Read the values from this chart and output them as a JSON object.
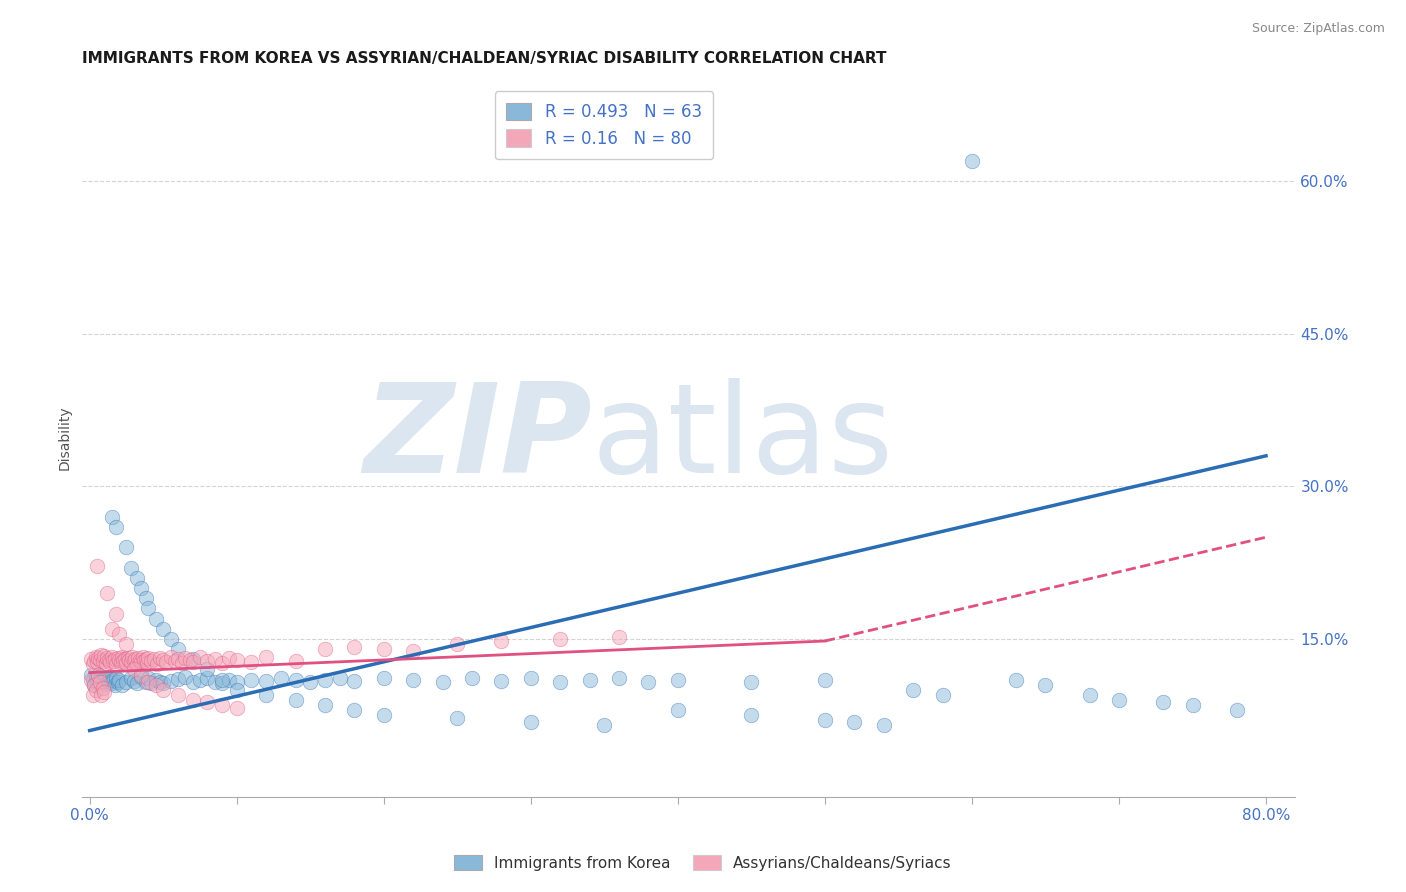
{
  "title": "IMMIGRANTS FROM KOREA VS ASSYRIAN/CHALDEAN/SYRIAC DISABILITY CORRELATION CHART",
  "source": "Source: ZipAtlas.com",
  "ylabel": "Disability",
  "xlim": [
    -0.005,
    0.82
  ],
  "ylim": [
    -0.005,
    0.7
  ],
  "xtick_values": [
    0.0,
    0.1,
    0.2,
    0.3,
    0.4,
    0.5,
    0.6,
    0.7,
    0.8
  ],
  "xticklabels_sparse": [
    "0.0%",
    "",
    "",
    "",
    "",
    "",
    "",
    "",
    "80.0%"
  ],
  "ytick_values": [
    0.15,
    0.3,
    0.45,
    0.6
  ],
  "yticklabels": [
    "15.0%",
    "30.0%",
    "45.0%",
    "60.0%"
  ],
  "grid_color": "#d0d0d0",
  "background_color": "#ffffff",
  "watermark_zip": "ZIP",
  "watermark_atlas": "atlas",
  "watermark_color": "#dce6f0",
  "blue_color": "#89b8d8",
  "pink_color": "#f4a7b9",
  "blue_line_color": "#2a6db5",
  "pink_line_color": "#e05080",
  "R_blue": 0.493,
  "N_blue": 63,
  "R_pink": 0.16,
  "N_pink": 80,
  "legend_label_blue": "Immigrants from Korea",
  "legend_label_pink": "Assyrians/Chaldeans/Syriacs",
  "blue_scatter_x": [
    0.001,
    0.002,
    0.003,
    0.004,
    0.005,
    0.006,
    0.007,
    0.008,
    0.009,
    0.01,
    0.011,
    0.012,
    0.013,
    0.014,
    0.015,
    0.016,
    0.017,
    0.018,
    0.019,
    0.02,
    0.022,
    0.025,
    0.028,
    0.03,
    0.032,
    0.035,
    0.038,
    0.04,
    0.042,
    0.045,
    0.048,
    0.05,
    0.055,
    0.06,
    0.065,
    0.07,
    0.075,
    0.08,
    0.085,
    0.09,
    0.095,
    0.1,
    0.11,
    0.12,
    0.13,
    0.14,
    0.15,
    0.16,
    0.17,
    0.18,
    0.2,
    0.22,
    0.24,
    0.26,
    0.28,
    0.3,
    0.32,
    0.34,
    0.36,
    0.38,
    0.4,
    0.45,
    0.5
  ],
  "blue_scatter_y": [
    0.115,
    0.11,
    0.105,
    0.112,
    0.108,
    0.113,
    0.107,
    0.114,
    0.109,
    0.111,
    0.106,
    0.112,
    0.108,
    0.113,
    0.107,
    0.11,
    0.105,
    0.112,
    0.108,
    0.11,
    0.105,
    0.108,
    0.112,
    0.109,
    0.107,
    0.113,
    0.108,
    0.112,
    0.107,
    0.11,
    0.108,
    0.107,
    0.109,
    0.111,
    0.113,
    0.108,
    0.11,
    0.112,
    0.108,
    0.107,
    0.11,
    0.108,
    0.11,
    0.109,
    0.112,
    0.11,
    0.108,
    0.11,
    0.112,
    0.109,
    0.112,
    0.11,
    0.108,
    0.112,
    0.109,
    0.112,
    0.108,
    0.11,
    0.112,
    0.108,
    0.11,
    0.108,
    0.11
  ],
  "blue_scatter_extra_x": [
    0.015,
    0.018,
    0.022,
    0.025,
    0.028,
    0.032,
    0.035,
    0.038,
    0.04,
    0.045,
    0.05,
    0.055,
    0.06,
    0.07,
    0.08,
    0.09,
    0.1,
    0.12,
    0.14,
    0.16,
    0.18,
    0.2,
    0.25,
    0.3,
    0.35,
    0.4,
    0.45,
    0.5,
    0.52,
    0.54,
    0.56,
    0.58,
    0.6,
    0.63,
    0.65,
    0.68,
    0.7,
    0.73,
    0.75,
    0.78
  ],
  "blue_scatter_extra_y": [
    0.27,
    0.26,
    0.13,
    0.24,
    0.22,
    0.21,
    0.2,
    0.19,
    0.18,
    0.17,
    0.16,
    0.15,
    0.14,
    0.13,
    0.12,
    0.11,
    0.1,
    0.095,
    0.09,
    0.085,
    0.08,
    0.075,
    0.072,
    0.068,
    0.065,
    0.08,
    0.075,
    0.07,
    0.068,
    0.065,
    0.1,
    0.095,
    0.62,
    0.11,
    0.105,
    0.095,
    0.09,
    0.088,
    0.085,
    0.08
  ],
  "pink_scatter_x": [
    0.001,
    0.002,
    0.003,
    0.004,
    0.005,
    0.006,
    0.007,
    0.008,
    0.009,
    0.01,
    0.011,
    0.012,
    0.013,
    0.014,
    0.015,
    0.016,
    0.017,
    0.018,
    0.019,
    0.02,
    0.021,
    0.022,
    0.023,
    0.024,
    0.025,
    0.026,
    0.027,
    0.028,
    0.029,
    0.03,
    0.031,
    0.032,
    0.033,
    0.034,
    0.035,
    0.036,
    0.037,
    0.038,
    0.039,
    0.04,
    0.042,
    0.044,
    0.046,
    0.048,
    0.05,
    0.052,
    0.055,
    0.058,
    0.06,
    0.063,
    0.065,
    0.068,
    0.07,
    0.075,
    0.08,
    0.085,
    0.09,
    0.095,
    0.1,
    0.11,
    0.12,
    0.14,
    0.16,
    0.18,
    0.2,
    0.22,
    0.25,
    0.28,
    0.32,
    0.36
  ],
  "pink_scatter_y": [
    0.13,
    0.125,
    0.128,
    0.132,
    0.127,
    0.131,
    0.129,
    0.134,
    0.128,
    0.133,
    0.126,
    0.131,
    0.129,
    0.127,
    0.132,
    0.128,
    0.13,
    0.125,
    0.131,
    0.129,
    0.127,
    0.132,
    0.128,
    0.13,
    0.126,
    0.131,
    0.129,
    0.127,
    0.132,
    0.128,
    0.13,
    0.125,
    0.131,
    0.129,
    0.127,
    0.132,
    0.128,
    0.13,
    0.126,
    0.131,
    0.128,
    0.13,
    0.125,
    0.131,
    0.129,
    0.127,
    0.132,
    0.128,
    0.13,
    0.126,
    0.131,
    0.129,
    0.127,
    0.132,
    0.128,
    0.13,
    0.126,
    0.131,
    0.129,
    0.127,
    0.132,
    0.128,
    0.14,
    0.142,
    0.14,
    0.138,
    0.145,
    0.148,
    0.15,
    0.152
  ],
  "pink_scatter_extra_x": [
    0.001,
    0.002,
    0.003,
    0.004,
    0.005,
    0.006,
    0.007,
    0.008,
    0.009,
    0.01,
    0.012,
    0.015,
    0.018,
    0.02,
    0.025,
    0.03,
    0.035,
    0.04,
    0.045,
    0.05,
    0.06,
    0.07,
    0.08,
    0.09,
    0.1
  ],
  "pink_scatter_extra_y": [
    0.11,
    0.095,
    0.105,
    0.1,
    0.222,
    0.115,
    0.108,
    0.095,
    0.102,
    0.098,
    0.195,
    0.16,
    0.175,
    0.155,
    0.145,
    0.12,
    0.115,
    0.108,
    0.105,
    0.1,
    0.095,
    0.09,
    0.088,
    0.085,
    0.082
  ],
  "blue_line_x": [
    0.0,
    0.8
  ],
  "blue_line_y": [
    0.06,
    0.33
  ],
  "pink_line_x": [
    0.0,
    0.5
  ],
  "pink_line_y": [
    0.117,
    0.148
  ],
  "pink_dashed_line_x": [
    0.5,
    0.8
  ],
  "pink_dashed_line_y": [
    0.148,
    0.25
  ],
  "title_fontsize": 11,
  "axis_label_fontsize": 10,
  "tick_fontsize": 11,
  "legend_fontsize": 12,
  "scatter_size": 55,
  "scatter_alpha": 0.5,
  "title_color": "#1a1a1a",
  "axis_label_color": "#555555",
  "tick_label_color": "#4472c4",
  "legend_text_color": "#4472c4"
}
